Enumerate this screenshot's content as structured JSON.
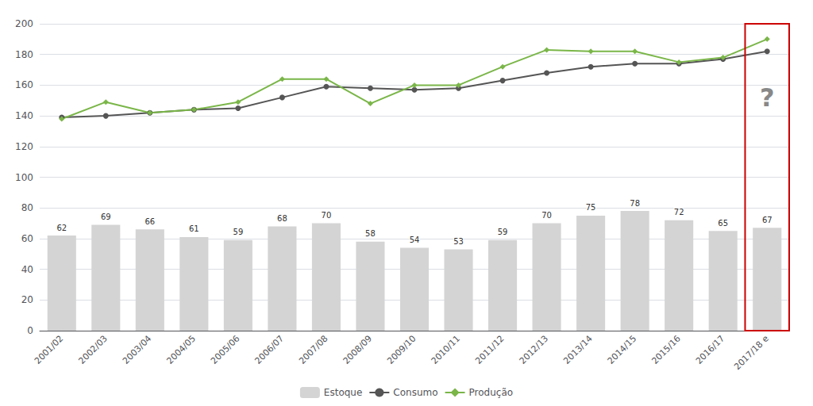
{
  "chart_data": {
    "type": "bar",
    "categories": [
      "2001/02",
      "2002/03",
      "2003/04",
      "2004/05",
      "2005/06",
      "2006/07",
      "2007/08",
      "2008/09",
      "2009/10",
      "2010/11",
      "2011/12",
      "2012/13",
      "2013/14",
      "2014/15",
      "2015/16",
      "2016/17",
      "2017/18 e"
    ],
    "series": [
      {
        "name": "Estoque",
        "type": "bar",
        "color": "#d4d4d4",
        "data_labels": true,
        "values": [
          62,
          69,
          66,
          61,
          59,
          68,
          70,
          58,
          54,
          53,
          59,
          70,
          75,
          78,
          72,
          65,
          67
        ]
      },
      {
        "name": "Consumo",
        "type": "line",
        "color": "#555555",
        "marker": "circle",
        "values": [
          139,
          140,
          142,
          144,
          145,
          152,
          159,
          158,
          157,
          158,
          163,
          168,
          172,
          174,
          174,
          177,
          182
        ]
      },
      {
        "name": "Produção",
        "type": "line",
        "color": "#7ab648",
        "marker": "diamond",
        "values": [
          138,
          149,
          142,
          144,
          149,
          164,
          164,
          148,
          160,
          160,
          172,
          183,
          182,
          182,
          175,
          178,
          190
        ]
      }
    ],
    "annotations": [
      {
        "text": "?",
        "x": "2017/18 e",
        "y": 152
      }
    ],
    "ylim": [
      0,
      200
    ],
    "yticks": [
      0,
      20,
      40,
      60,
      80,
      100,
      120,
      140,
      160,
      180,
      200
    ],
    "grid": true,
    "legend": "bottom"
  }
}
